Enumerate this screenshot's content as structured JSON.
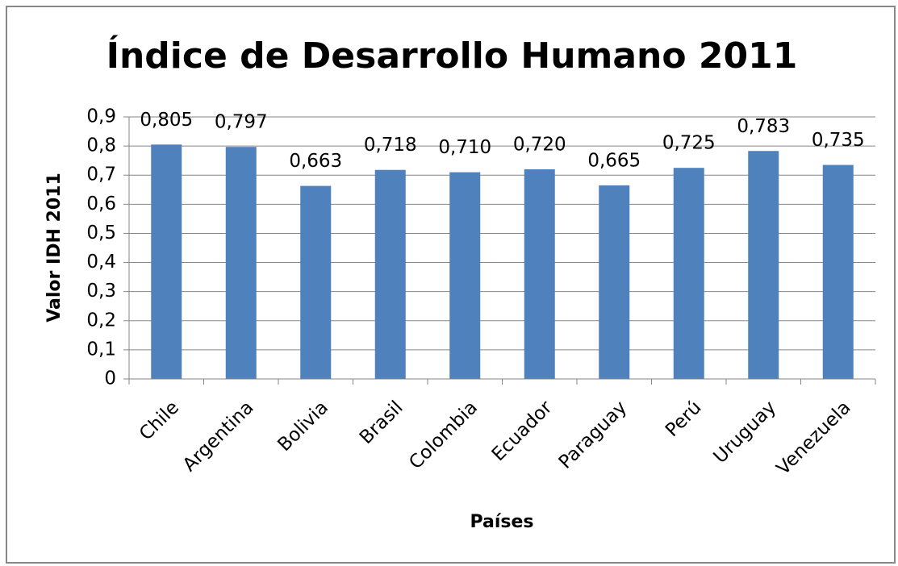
{
  "chart_data": {
    "type": "bar",
    "title": "Índice de Desarrollo Humano 2011",
    "x_label": "Países",
    "y_label": "Valor IDH 2011",
    "categories": [
      "Chile",
      "Argentina",
      "Bolivia",
      "Brasil",
      "Colombia",
      "Ecuador",
      "Paraguay",
      "Perú",
      "Uruguay",
      "Venezuela"
    ],
    "values": [
      0.805,
      0.797,
      0.663,
      0.718,
      0.71,
      0.72,
      0.665,
      0.725,
      0.783,
      0.735
    ],
    "value_labels": [
      "0,805",
      "0,797",
      "0,663",
      "0,718",
      "0,710",
      "0,720",
      "0,665",
      "0,725",
      "0,783",
      "0,735"
    ],
    "color": "#4f81bd",
    "ylim": [
      0,
      0.9
    ],
    "yticks": [
      0,
      {
        "value": 0.1,
        "label": "0,1"
      },
      {
        "value": 0.2,
        "label": "0,2"
      },
      {
        "value": 0.3,
        "label": "0,3"
      },
      {
        "value": 0.4,
        "label": "0,4"
      },
      {
        "value": 0.5,
        "label": "0,5"
      },
      {
        "value": 0.6,
        "label": "0,6"
      },
      {
        "value": 0.7,
        "label": "0,7"
      },
      {
        "value": 0.8,
        "label": "0,8"
      },
      {
        "value": 0.9,
        "label": "0,9"
      }
    ],
    "grid": true
  }
}
